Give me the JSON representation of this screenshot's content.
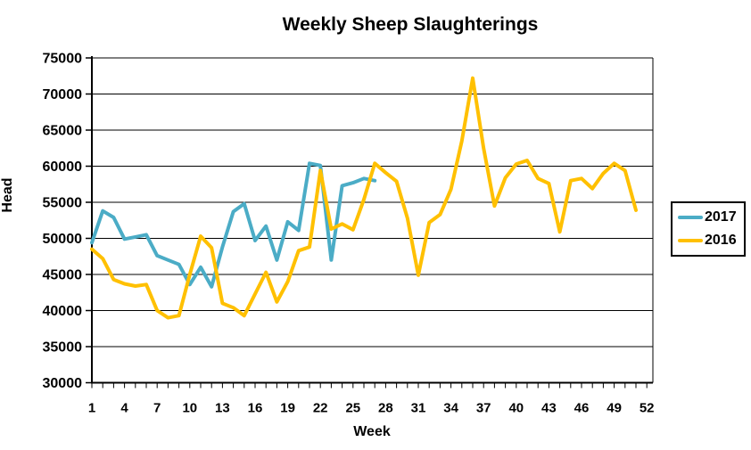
{
  "chart_data": {
    "type": "line",
    "title": "Weekly Sheep Slaughterings",
    "xlabel": "Week",
    "ylabel": "Head",
    "ylim": [
      30000,
      75000
    ],
    "y_tick_step": 5000,
    "x_range": [
      1,
      52
    ],
    "x_tick_labels": [
      1,
      4,
      7,
      10,
      13,
      16,
      19,
      22,
      25,
      28,
      31,
      34,
      37,
      40,
      43,
      46,
      49,
      52
    ],
    "y_tick_labels": [
      75000,
      70000,
      65000,
      60000,
      55000,
      50000,
      45000,
      40000,
      35000,
      30000
    ],
    "grid": true,
    "legend_position": "right",
    "series": [
      {
        "name": "2017",
        "color": "#4BACC6",
        "x": [
          1,
          2,
          3,
          4,
          5,
          6,
          7,
          8,
          9,
          10,
          11,
          12,
          13,
          14,
          15,
          16,
          17,
          18,
          19,
          20,
          21,
          22,
          23,
          24,
          25,
          26,
          27
        ],
        "values": [
          49400,
          53800,
          52900,
          49900,
          50200,
          50500,
          47600,
          47000,
          46400,
          43600,
          46000,
          43300,
          48800,
          53700,
          54800,
          49700,
          51700,
          47000,
          52300,
          51100,
          60400,
          60100,
          47000,
          57300,
          57700,
          58300,
          58000
        ]
      },
      {
        "name": "2016",
        "color": "#FFC000",
        "x": [
          1,
          2,
          3,
          4,
          5,
          6,
          7,
          8,
          9,
          10,
          11,
          12,
          13,
          14,
          15,
          16,
          17,
          18,
          19,
          20,
          21,
          22,
          23,
          24,
          25,
          26,
          27,
          28,
          29,
          30,
          31,
          32,
          33,
          34,
          35,
          36,
          37,
          38,
          39,
          40,
          41,
          42,
          43,
          44,
          45,
          46,
          47,
          48,
          49,
          50,
          51
        ],
        "values": [
          48500,
          47200,
          44300,
          43700,
          43400,
          43600,
          40000,
          39000,
          39300,
          45000,
          50300,
          48700,
          41000,
          40400,
          39300,
          42300,
          45300,
          41200,
          44000,
          48300,
          48800,
          59400,
          51300,
          52000,
          51200,
          55400,
          60400,
          59100,
          57900,
          52800,
          44900,
          52200,
          53300,
          56800,
          63500,
          72200,
          62500,
          54500,
          58400,
          60300,
          60800,
          58300,
          57600,
          50900,
          58000,
          58300,
          56900,
          59000,
          60400,
          59400,
          53900
        ]
      }
    ]
  }
}
